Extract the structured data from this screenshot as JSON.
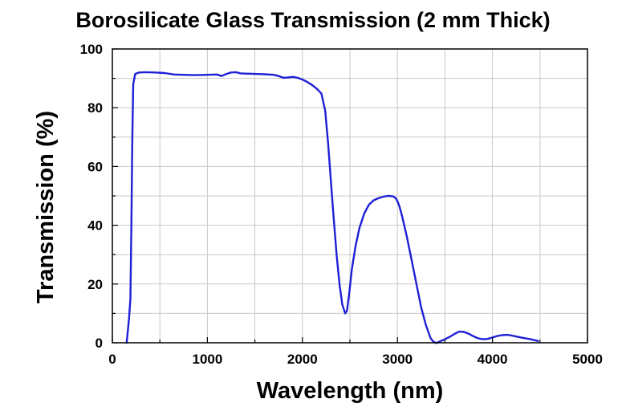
{
  "chart_data": {
    "type": "line",
    "title": "Borosilicate Glass Transmission (2 mm Thick)",
    "xlabel": "Wavelength (nm)",
    "ylabel": "Transmission (%)",
    "xlim": [
      0,
      5000
    ],
    "ylim": [
      0,
      100
    ],
    "x_ticks": [
      0,
      1000,
      2000,
      3000,
      4000,
      5000
    ],
    "y_ticks": [
      0,
      20,
      40,
      60,
      80,
      100
    ],
    "x_ticks_labels": [
      "0",
      "1000",
      "2000",
      "3000",
      "4000",
      "5000"
    ],
    "y_ticks_labels": [
      "0",
      "20",
      "40",
      "60",
      "80",
      "100"
    ],
    "x_minor_step": 500,
    "y_minor_step": 10,
    "grid": true,
    "color": "#1f1fd6",
    "series": [
      {
        "x": [
          150,
          175,
          190,
          200,
          210,
          220,
          240,
          280,
          350,
          450,
          550,
          650,
          750,
          850,
          1000,
          1100,
          1150,
          1200,
          1250,
          1300,
          1350,
          1400,
          1500,
          1600,
          1700,
          1750,
          1800,
          1850,
          1900,
          1950,
          2000,
          2050,
          2100,
          2150,
          2200,
          2240,
          2270,
          2300,
          2330,
          2360,
          2390,
          2420,
          2450,
          2470,
          2490,
          2520,
          2560,
          2600,
          2650,
          2700,
          2750,
          2800,
          2850,
          2900,
          2950,
          2980,
          3000,
          3020,
          3050,
          3100,
          3150,
          3200,
          3250,
          3300,
          3350,
          3380,
          3400,
          3420,
          3450,
          3500,
          3550,
          3600,
          3650,
          3700,
          3750,
          3800,
          3850,
          3900,
          3950,
          4000,
          4050,
          4100,
          4150,
          4200,
          4300,
          4400,
          4480
        ],
        "y": [
          0,
          8,
          15,
          40,
          70,
          88,
          91.5,
          92,
          92.1,
          92,
          91.8,
          91.3,
          91.2,
          91.1,
          91.2,
          91.3,
          90.8,
          91.5,
          92.0,
          92.1,
          91.7,
          91.6,
          91.5,
          91.4,
          91.2,
          90.8,
          90.2,
          90.3,
          90.5,
          90.2,
          89.6,
          88.8,
          87.8,
          86.5,
          84.8,
          79,
          68,
          55,
          42,
          30,
          20,
          13,
          10,
          11,
          16,
          25,
          33,
          39,
          44,
          47,
          48.5,
          49.2,
          49.7,
          50.0,
          49.9,
          49.3,
          48.2,
          46.5,
          43,
          36,
          28,
          20,
          12,
          6,
          1.5,
          0.3,
          0,
          0,
          0.5,
          1.2,
          2,
          3,
          3.8,
          3.7,
          3.1,
          2.2,
          1.5,
          1.2,
          1.3,
          1.8,
          2.3,
          2.6,
          2.7,
          2.5,
          1.8,
          1.2,
          0.6
        ]
      }
    ]
  }
}
